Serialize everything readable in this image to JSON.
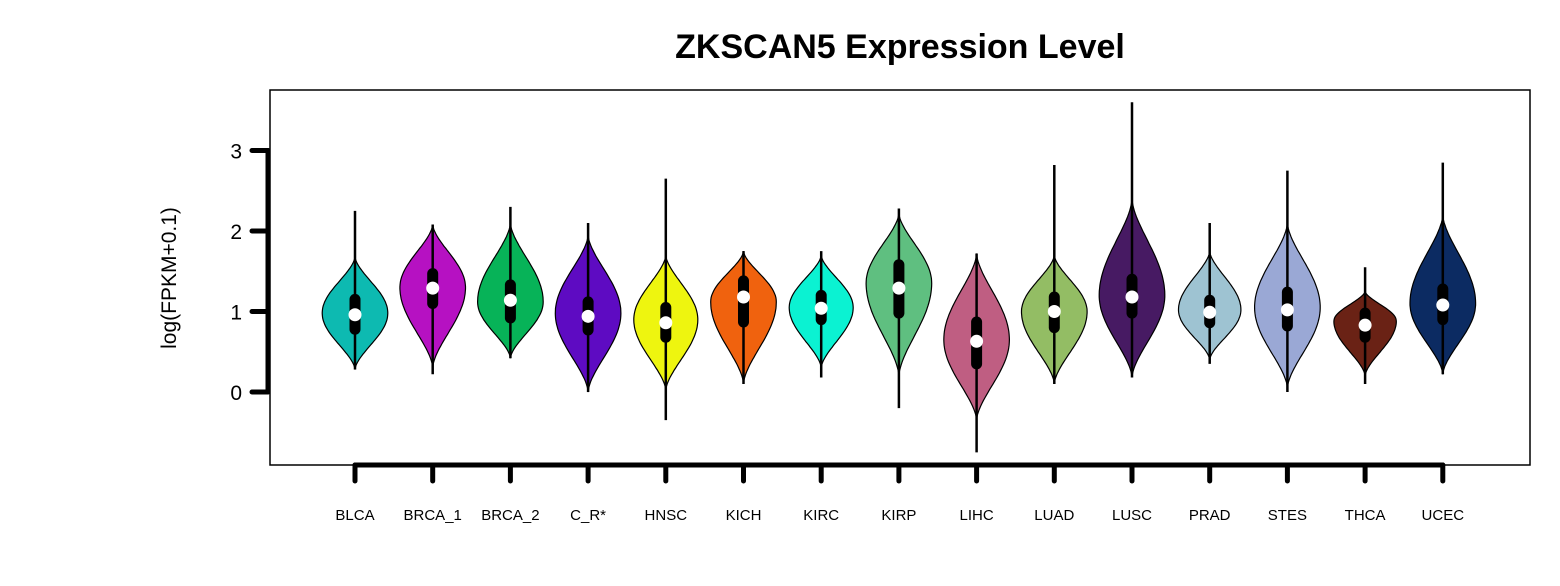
{
  "chart_data": {
    "type": "violin",
    "title": "ZKSCAN5 Expression Level",
    "ylabel": "log(FPKM+0.1)",
    "xlabel": "",
    "ylim": [
      -0.9,
      3.75
    ],
    "yticks": [
      0,
      1,
      2,
      3
    ],
    "ytick_labels": [
      "0",
      "1",
      "2",
      "3"
    ],
    "categories": [
      "BLCA",
      "BRCA_1",
      "BRCA_2",
      "C_R*",
      "HNSC",
      "KICH",
      "KIRC",
      "KIRP",
      "LIHC",
      "LUAD",
      "LUSC",
      "PRAD",
      "STES",
      "THCA",
      "UCEC"
    ],
    "series": [
      {
        "category": "BLCA",
        "color": "#0DBAB1",
        "min": 0.28,
        "max": 2.25,
        "q1": 0.78,
        "median": 0.96,
        "q3": 1.15,
        "violin_low": 0.28,
        "violin_high": 1.68,
        "mode": 0.98,
        "max_halfwidth": 0.82
      },
      {
        "category": "BRCA_1",
        "color": "#B611C2",
        "min": 0.22,
        "max": 2.08,
        "q1": 1.1,
        "median": 1.29,
        "q3": 1.47,
        "violin_low": 0.3,
        "violin_high": 2.08,
        "mode": 1.3,
        "max_halfwidth": 0.82
      },
      {
        "category": "BRCA_2",
        "color": "#07B358",
        "min": 0.42,
        "max": 2.3,
        "q1": 0.92,
        "median": 1.14,
        "q3": 1.33,
        "violin_low": 0.42,
        "violin_high": 2.1,
        "mode": 1.12,
        "max_halfwidth": 0.82
      },
      {
        "category": "C_R*",
        "color": "#5E0BC2",
        "min": 0.0,
        "max": 2.1,
        "q1": 0.77,
        "median": 0.94,
        "q3": 1.12,
        "violin_low": 0.0,
        "violin_high": 1.95,
        "mode": 0.98,
        "max_halfwidth": 0.82
      },
      {
        "category": "HNSC",
        "color": "#EEF50F",
        "min": -0.35,
        "max": 2.65,
        "q1": 0.68,
        "median": 0.86,
        "q3": 1.05,
        "violin_low": 0.02,
        "violin_high": 1.7,
        "mode": 0.9,
        "max_halfwidth": 0.8
      },
      {
        "category": "KICH",
        "color": "#F0620E",
        "min": 0.1,
        "max": 1.75,
        "q1": 0.87,
        "median": 1.18,
        "q3": 1.38,
        "violin_low": 0.1,
        "violin_high": 1.75,
        "mode": 1.12,
        "max_halfwidth": 0.82
      },
      {
        "category": "KIRC",
        "color": "#0BF2D2",
        "min": 0.18,
        "max": 1.75,
        "q1": 0.9,
        "median": 1.04,
        "q3": 1.2,
        "violin_low": 0.3,
        "violin_high": 1.7,
        "mode": 1.05,
        "max_halfwidth": 0.8
      },
      {
        "category": "KIRP",
        "color": "#5FBF80",
        "min": -0.2,
        "max": 2.28,
        "q1": 0.98,
        "median": 1.29,
        "q3": 1.58,
        "violin_low": 0.2,
        "violin_high": 2.22,
        "mode": 1.35,
        "max_halfwidth": 0.82
      },
      {
        "category": "LIHC",
        "color": "#BF5E82",
        "min": -0.75,
        "max": 1.72,
        "q1": 0.35,
        "median": 0.63,
        "q3": 0.87,
        "violin_low": -0.35,
        "violin_high": 1.72,
        "mode": 0.65,
        "max_halfwidth": 0.82
      },
      {
        "category": "LUAD",
        "color": "#93BD64",
        "min": 0.1,
        "max": 2.82,
        "q1": 0.8,
        "median": 1.0,
        "q3": 1.18,
        "violin_low": 0.1,
        "violin_high": 1.7,
        "mode": 1.0,
        "max_halfwidth": 0.82
      },
      {
        "category": "LUSC",
        "color": "#471A63",
        "min": 0.18,
        "max": 3.6,
        "q1": 0.98,
        "median": 1.18,
        "q3": 1.4,
        "violin_low": 0.18,
        "violin_high": 2.4,
        "mode": 1.2,
        "max_halfwidth": 0.82
      },
      {
        "category": "PRAD",
        "color": "#9EC3D2",
        "min": 0.35,
        "max": 2.1,
        "q1": 0.86,
        "median": 0.99,
        "q3": 1.14,
        "violin_low": 0.4,
        "violin_high": 1.75,
        "mode": 1.02,
        "max_halfwidth": 0.78
      },
      {
        "category": "STES",
        "color": "#9AA8D5",
        "min": 0.0,
        "max": 2.75,
        "q1": 0.82,
        "median": 1.02,
        "q3": 1.24,
        "violin_low": 0.05,
        "violin_high": 2.1,
        "mode": 1.05,
        "max_halfwidth": 0.82
      },
      {
        "category": "THCA",
        "color": "#6A2215",
        "min": 0.1,
        "max": 1.55,
        "q1": 0.68,
        "median": 0.83,
        "q3": 0.98,
        "violin_low": 0.2,
        "violin_high": 1.25,
        "mode": 0.88,
        "max_halfwidth": 0.78
      },
      {
        "category": "UCEC",
        "color": "#0C2B62",
        "min": 0.22,
        "max": 2.85,
        "q1": 0.9,
        "median": 1.08,
        "q3": 1.28,
        "violin_low": 0.22,
        "violin_high": 2.2,
        "mode": 1.1,
        "max_halfwidth": 0.82
      }
    ]
  }
}
